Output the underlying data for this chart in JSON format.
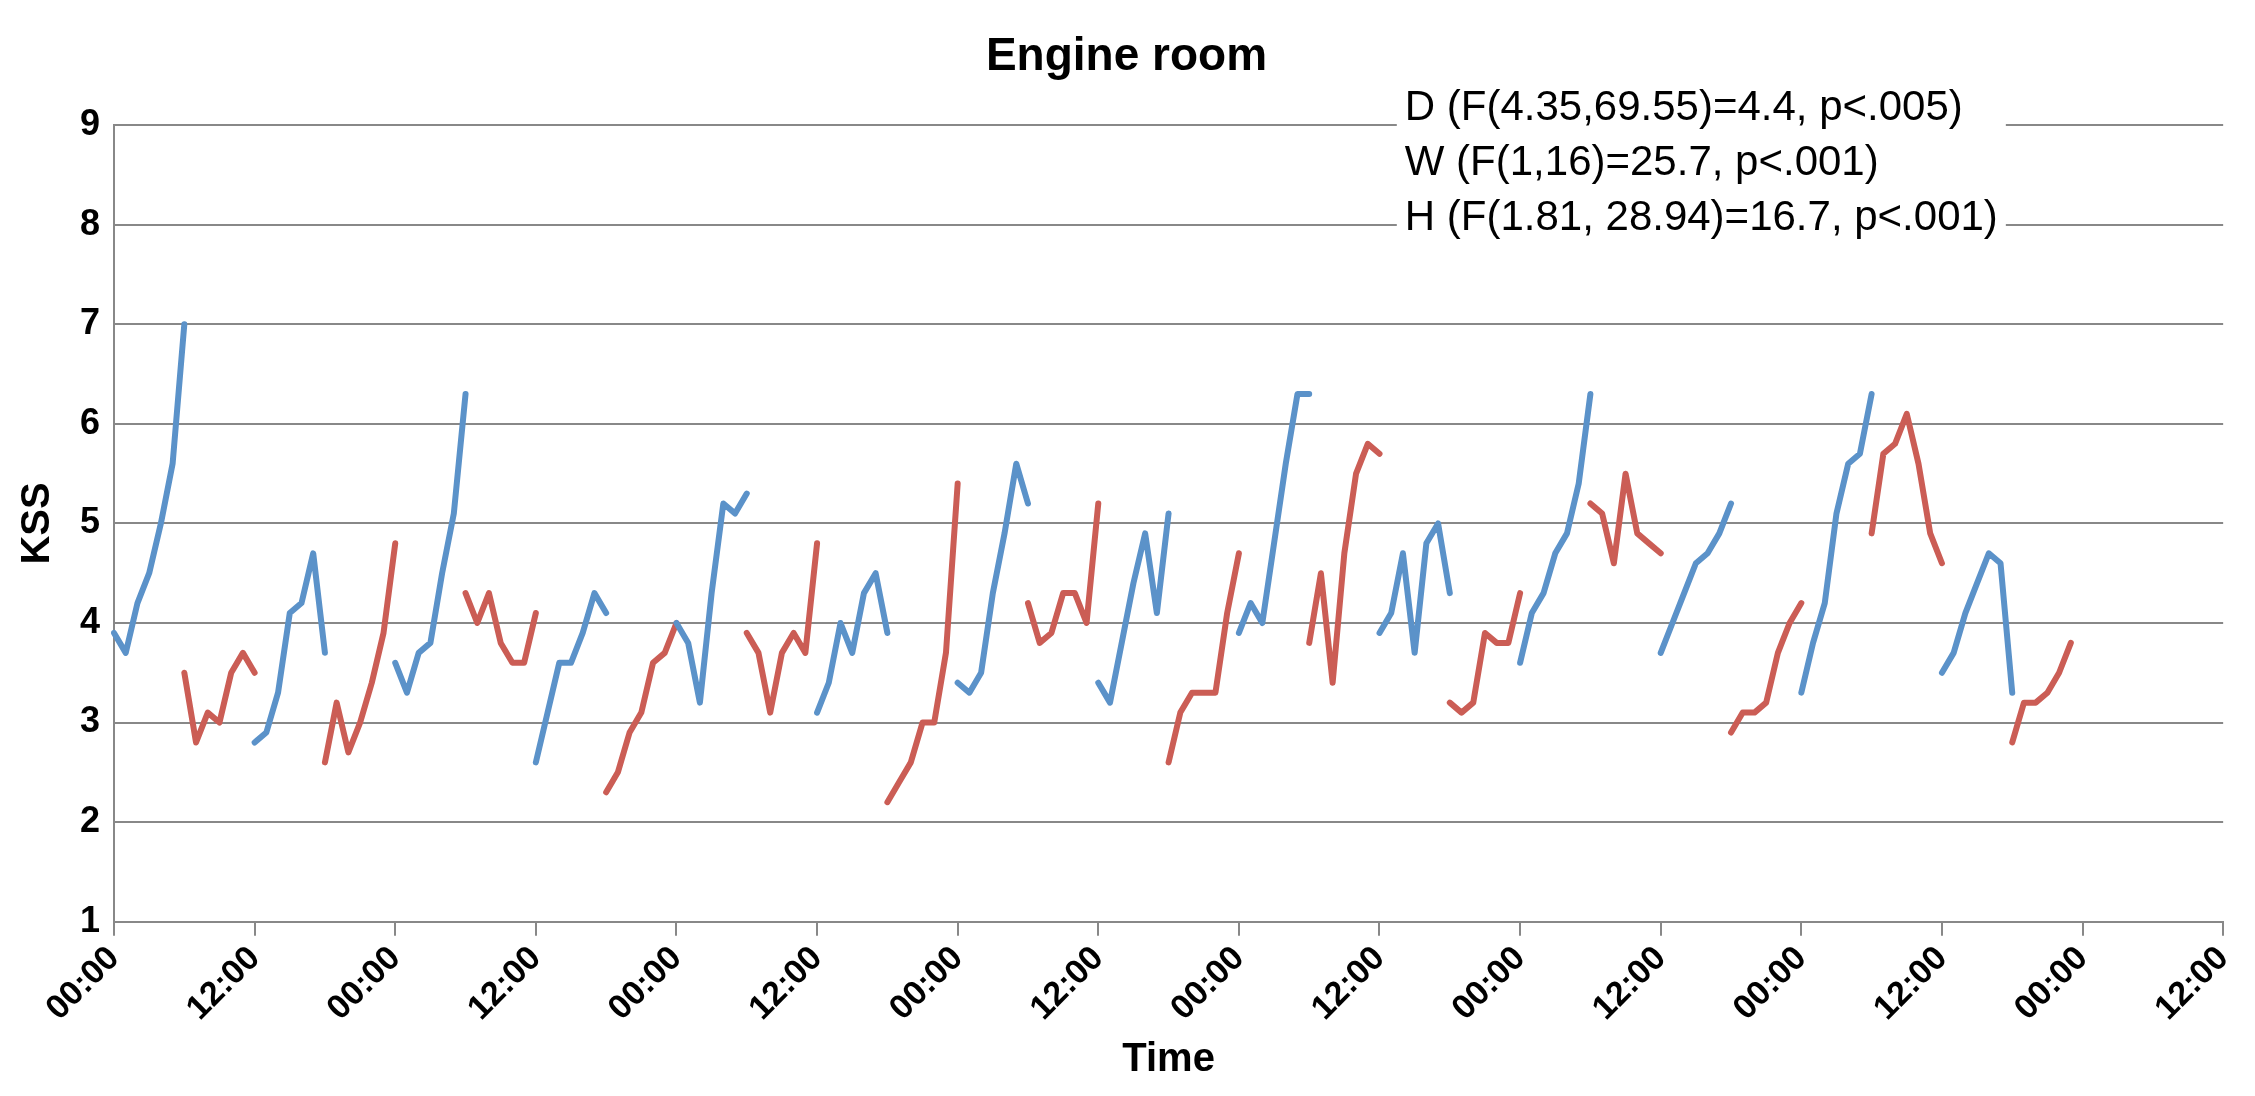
{
  "chart_data": {
    "type": "line",
    "title": "Engine room",
    "xlabel": "Time",
    "ylabel": "KSS",
    "annotations": [
      "D (F(4.35,69.55)=4.4, p<.005)",
      "W (F(1,16)=25.7, p<.001)",
      "H (F(1.81, 28.94)=16.7, p<.001)"
    ],
    "categories": [
      "00:00",
      null,
      null,
      null,
      null,
      null,
      null,
      null,
      null,
      null,
      null,
      null,
      "12:00",
      null,
      null,
      null,
      null,
      null,
      null,
      null,
      null,
      null,
      null,
      null,
      "00:00",
      null,
      null,
      null,
      null,
      null,
      null,
      null,
      null,
      null,
      null,
      null,
      "12:00",
      null,
      null,
      null,
      null,
      null,
      null,
      null,
      null,
      null,
      null,
      null,
      "00:00",
      null,
      null,
      null,
      null,
      null,
      null,
      null,
      null,
      null,
      null,
      null,
      "12:00",
      null,
      null,
      null,
      null,
      null,
      null,
      null,
      null,
      null,
      null,
      null,
      "00:00",
      null,
      null,
      null,
      null,
      null,
      null,
      null,
      null,
      null,
      null,
      null,
      "12:00",
      null,
      null,
      null,
      null,
      null,
      null,
      null,
      null,
      null,
      null,
      null,
      "00:00",
      null,
      null,
      null,
      null,
      null,
      null,
      null,
      null,
      null,
      null,
      null,
      "12:00",
      null,
      null,
      null,
      null,
      null,
      null,
      null,
      null,
      null,
      null,
      null,
      "00:00",
      null,
      null,
      null,
      null,
      null,
      null,
      null,
      null,
      null,
      null,
      null,
      "12:00",
      null,
      null,
      null,
      null,
      null,
      null,
      null,
      null,
      null,
      null,
      null,
      "00:00",
      null,
      null,
      null,
      null,
      null,
      null,
      null,
      null,
      null,
      null,
      null,
      "12:00",
      null,
      null,
      null,
      null,
      null,
      null,
      null,
      null,
      null,
      null,
      null,
      "00:00",
      null,
      null,
      null,
      null,
      null,
      null,
      null,
      null,
      null,
      null,
      null,
      "12:00"
    ],
    "series": [
      {
        "color": "#5b92c9",
        "values": [
          3.9,
          3.7,
          4.2,
          4.5,
          5.0,
          5.6,
          7.0,
          null,
          null,
          null,
          null,
          null,
          2.8,
          2.9,
          3.3,
          4.1,
          4.2,
          4.7,
          3.7,
          null,
          null,
          null,
          null,
          null,
          3.6,
          3.3,
          3.7,
          3.8,
          4.5,
          5.1,
          6.3,
          null,
          null,
          null,
          null,
          null,
          2.6,
          3.1,
          3.6,
          3.6,
          3.9,
          4.3,
          4.1,
          null,
          null,
          null,
          null,
          null,
          4.0,
          3.8,
          3.2,
          4.3,
          5.2,
          5.1,
          5.3,
          null,
          null,
          null,
          null,
          null,
          3.1,
          3.4,
          4.0,
          3.7,
          4.3,
          4.5,
          3.9,
          null,
          null,
          null,
          null,
          null,
          3.4,
          3.3,
          3.5,
          4.3,
          4.9,
          5.6,
          5.2,
          null,
          null,
          null,
          null,
          null,
          3.4,
          3.2,
          3.8,
          4.4,
          4.9,
          4.1,
          5.1,
          null,
          null,
          null,
          null,
          null,
          3.9,
          4.2,
          4.0,
          4.8,
          5.6,
          6.3,
          6.3,
          null,
          null,
          null,
          null,
          null,
          3.9,
          4.1,
          4.7,
          3.7,
          4.8,
          5.0,
          4.3,
          null,
          null,
          null,
          null,
          null,
          3.6,
          4.1,
          4.3,
          4.7,
          4.9,
          5.4,
          6.3,
          null,
          null,
          null,
          null,
          null,
          3.7,
          4.0,
          4.3,
          4.6,
          4.7,
          4.9,
          5.2,
          null,
          null,
          null,
          null,
          null,
          3.3,
          3.8,
          4.2,
          5.1,
          5.6,
          5.7,
          6.3,
          null,
          null,
          null,
          null,
          null,
          3.5,
          3.7,
          4.1,
          4.4,
          4.7,
          4.6,
          3.3,
          null,
          null,
          null,
          null,
          null,
          null,
          null,
          null,
          null,
          null,
          null,
          null,
          null,
          null,
          null,
          null,
          null,
          null
        ]
      },
      {
        "color": "#cb5d55",
        "values": [
          null,
          null,
          null,
          null,
          null,
          null,
          3.5,
          2.8,
          3.1,
          3.0,
          3.5,
          3.7,
          3.5,
          null,
          null,
          null,
          null,
          null,
          2.6,
          3.2,
          2.7,
          3.0,
          3.4,
          3.9,
          4.8,
          null,
          null,
          null,
          null,
          null,
          4.3,
          4.0,
          4.3,
          3.8,
          3.6,
          3.6,
          4.1,
          null,
          null,
          null,
          null,
          null,
          2.3,
          2.5,
          2.9,
          3.1,
          3.6,
          3.7,
          4.0,
          null,
          null,
          null,
          null,
          null,
          3.9,
          3.7,
          3.1,
          3.7,
          3.9,
          3.7,
          4.8,
          null,
          null,
          null,
          null,
          null,
          2.2,
          2.4,
          2.6,
          3.0,
          3.0,
          3.7,
          5.4,
          null,
          null,
          null,
          null,
          null,
          4.2,
          3.8,
          3.9,
          4.3,
          4.3,
          4.0,
          5.2,
          null,
          null,
          null,
          null,
          null,
          2.6,
          3.1,
          3.3,
          3.3,
          3.3,
          4.1,
          4.7,
          null,
          null,
          null,
          null,
          null,
          3.8,
          4.5,
          3.4,
          4.7,
          5.5,
          5.8,
          5.7,
          null,
          null,
          null,
          null,
          null,
          3.2,
          3.1,
          3.2,
          3.9,
          3.8,
          3.8,
          4.3,
          null,
          null,
          null,
          null,
          null,
          5.2,
          5.1,
          4.6,
          5.5,
          4.9,
          4.8,
          4.7,
          null,
          null,
          null,
          null,
          null,
          2.9,
          3.1,
          3.1,
          3.2,
          3.7,
          4.0,
          4.2,
          null,
          null,
          null,
          null,
          null,
          4.9,
          5.7,
          5.8,
          6.1,
          5.6,
          4.9,
          4.6,
          null,
          null,
          null,
          null,
          null,
          2.8,
          3.2,
          3.2,
          3.3,
          3.5,
          3.8,
          null,
          null,
          null,
          null,
          null,
          null,
          null,
          null,
          null,
          null,
          null,
          null,
          null
        ]
      }
    ],
    "ylim": [
      1,
      9
    ],
    "yticks": [
      1,
      2,
      3,
      4,
      5,
      6,
      7,
      8,
      9
    ],
    "grid": "y"
  }
}
